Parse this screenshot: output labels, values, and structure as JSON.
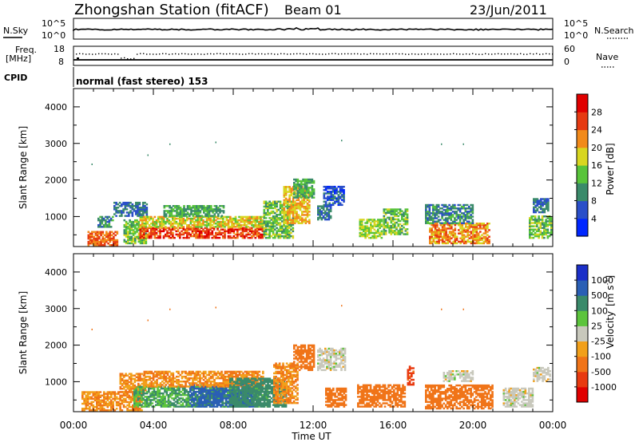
{
  "header": {
    "station": "Zhongshan Station (fitACF)",
    "beam": "Beam 01",
    "date": "23/Jun/2011"
  },
  "top_panels": {
    "nsky_label": "N.Sky",
    "nsearch_label": "N.Search",
    "nsky_ticks": [
      "10^5",
      "10^0"
    ],
    "nsky_right_ticks": [
      "10^5",
      "10^0"
    ],
    "freq_label_1": "Freq.",
    "freq_label_2": "[MHz]",
    "freq_ticks": [
      "18",
      "8"
    ],
    "nave_label": "Nave",
    "nave_ticks": [
      "60",
      "0"
    ],
    "cpid_label": "CPID",
    "cpid_text": "normal (fast stereo) 153"
  },
  "axes": {
    "xlabel": "Time UT",
    "x_ticks": [
      "00:00",
      "04:00",
      "08:00",
      "12:00",
      "16:00",
      "20:00",
      "00:00"
    ],
    "ylabel_power": "Slant Range [km]",
    "ylabel_velocity": "Slant Range [km]",
    "y_ticks": [
      "1000",
      "2000",
      "3000",
      "4000"
    ]
  },
  "colorbars": {
    "power": {
      "label": "Power [dB]",
      "ticks": [
        "4",
        "8",
        "12",
        "16",
        "20",
        "24",
        "28"
      ],
      "colors": [
        "#0026ff",
        "#2a4fc9",
        "#3a8a6a",
        "#58c43a",
        "#d8d620",
        "#f28a1a",
        "#e63a12",
        "#e00000"
      ]
    },
    "velocity": {
      "label_main": "Velocity",
      "label_units": "[m s",
      "label_exp": "-1",
      "label_close": "]",
      "ticks": [
        "1000",
        "500",
        "100",
        "25",
        "-25",
        "-100",
        "-500",
        "-1000"
      ],
      "colors": [
        "#1b2fc8",
        "#2a5fb5",
        "#3a8a6a",
        "#5cc43c",
        "#c8c8bc",
        "#f2a01a",
        "#f07418",
        "#e83a10",
        "#e00000"
      ]
    }
  },
  "chart_data": [
    {
      "type": "heatmap",
      "name": "Power",
      "x_range_hours": [
        0,
        24
      ],
      "y_range_km": [
        180,
        4500
      ],
      "blobs": [
        {
          "t0": 0.7,
          "t1": 2.2,
          "r0": 200,
          "r1": 600,
          "v": 24
        },
        {
          "t0": 1.2,
          "t1": 2.0,
          "r0": 700,
          "r1": 1000,
          "v": 10
        },
        {
          "t0": 2.5,
          "t1": 3.6,
          "r0": 250,
          "r1": 900,
          "v": 14
        },
        {
          "t0": 2.0,
          "t1": 3.7,
          "r0": 1000,
          "r1": 1400,
          "v": 8
        },
        {
          "t0": 3.3,
          "t1": 9.5,
          "r0": 400,
          "r1": 700,
          "v": 26
        },
        {
          "t0": 3.3,
          "t1": 9.5,
          "r0": 700,
          "r1": 1000,
          "v": 18
        },
        {
          "t0": 4.5,
          "t1": 7.5,
          "r0": 1000,
          "r1": 1300,
          "v": 12
        },
        {
          "t0": 9.5,
          "t1": 11.0,
          "r0": 400,
          "r1": 1400,
          "v": 14
        },
        {
          "t0": 10.5,
          "t1": 11.8,
          "r0": 800,
          "r1": 1800,
          "v": 20
        },
        {
          "t0": 11.0,
          "t1": 12.0,
          "r0": 1500,
          "r1": 2000,
          "v": 12
        },
        {
          "t0": 12.5,
          "t1": 13.5,
          "r0": 1300,
          "r1": 1800,
          "v": 6
        },
        {
          "t0": 12.2,
          "t1": 12.9,
          "r0": 900,
          "r1": 1300,
          "v": 8
        },
        {
          "t0": 14.3,
          "t1": 15.4,
          "r0": 400,
          "r1": 900,
          "v": 16
        },
        {
          "t0": 15.5,
          "t1": 16.7,
          "r0": 500,
          "r1": 1200,
          "v": 14
        },
        {
          "t0": 17.8,
          "t1": 20.8,
          "r0": 250,
          "r1": 800,
          "v": 22
        },
        {
          "t0": 17.6,
          "t1": 20.0,
          "r0": 800,
          "r1": 1300,
          "v": 10
        },
        {
          "t0": 22.8,
          "t1": 23.9,
          "r0": 400,
          "r1": 1000,
          "v": 14
        },
        {
          "t0": 23.0,
          "t1": 23.8,
          "r0": 1100,
          "r1": 1500,
          "v": 8
        }
      ]
    },
    {
      "type": "heatmap",
      "name": "Velocity",
      "x_range_hours": [
        0,
        24
      ],
      "y_range_km": [
        180,
        4500
      ],
      "blobs": [
        {
          "t0": 0.4,
          "t1": 3.4,
          "r0": 200,
          "r1": 700,
          "v": -100
        },
        {
          "t0": 2.3,
          "t1": 3.6,
          "r0": 700,
          "r1": 1200,
          "v": -100
        },
        {
          "t0": 3.0,
          "t1": 9.8,
          "r0": 300,
          "r1": 850,
          "v": 100
        },
        {
          "t0": 5.8,
          "t1": 9.0,
          "r0": 300,
          "r1": 900,
          "v": 700
        },
        {
          "t0": 3.5,
          "t1": 9.5,
          "r0": 850,
          "r1": 1300,
          "v": -100
        },
        {
          "t0": 7.8,
          "t1": 10.6,
          "r0": 300,
          "r1": 1100,
          "v": 300
        },
        {
          "t0": 10.0,
          "t1": 11.2,
          "r0": 400,
          "r1": 1500,
          "v": -100
        },
        {
          "t0": 11.0,
          "t1": 12.0,
          "r0": 1300,
          "r1": 2000,
          "v": -300
        },
        {
          "t0": 12.2,
          "t1": 13.6,
          "r0": 1300,
          "r1": 1900,
          "v": 0
        },
        {
          "t0": 12.6,
          "t1": 13.6,
          "r0": 300,
          "r1": 800,
          "v": -300
        },
        {
          "t0": 14.2,
          "t1": 16.6,
          "r0": 300,
          "r1": 900,
          "v": -300
        },
        {
          "t0": 16.7,
          "t1": 17.0,
          "r0": 900,
          "r1": 1400,
          "v": -700
        },
        {
          "t0": 17.6,
          "t1": 21.0,
          "r0": 250,
          "r1": 900,
          "v": -200
        },
        {
          "t0": 18.5,
          "t1": 20.0,
          "r0": 1000,
          "r1": 1300,
          "v": 0
        },
        {
          "t0": 21.5,
          "t1": 23.0,
          "r0": 300,
          "r1": 800,
          "v": 0
        },
        {
          "t0": 23.0,
          "t1": 23.9,
          "r0": 1000,
          "r1": 1400,
          "v": 0
        }
      ]
    }
  ]
}
